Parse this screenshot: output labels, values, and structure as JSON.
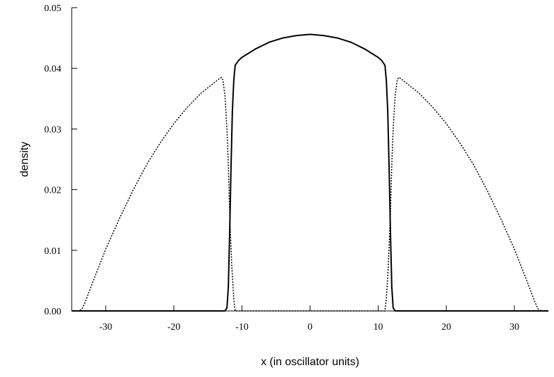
{
  "chart_data": {
    "type": "line",
    "title": "",
    "xlabel": "x (in oscillator units)",
    "ylabel": "density",
    "xlim": [
      -35,
      35
    ],
    "ylim": [
      0,
      0.05
    ],
    "x_ticks": [
      -30,
      -20,
      -10,
      0,
      10,
      20,
      30
    ],
    "x_tick_labels": [
      "-30",
      "-20",
      "-10",
      "0",
      "10",
      "20",
      "30"
    ],
    "y_ticks": [
      0,
      0.01,
      0.02,
      0.03,
      0.04,
      0.05
    ],
    "y_tick_labels": [
      "0.00",
      "0.01",
      "0.02",
      "0.03",
      "0.04",
      "0.05"
    ],
    "grid": false,
    "legend": "none",
    "series": [
      {
        "style": "solid",
        "color": "#000000",
        "x": [
          -35,
          -14,
          -12.5,
          -12.2,
          -12.0,
          -11.8,
          -11.6,
          -11.4,
          -11.2,
          -11.0,
          -10.5,
          -10,
          -8,
          -6,
          -4,
          -2,
          0,
          2,
          4,
          6,
          8,
          10,
          10.5,
          11.0,
          11.2,
          11.4,
          11.6,
          11.8,
          12.0,
          12.2,
          12.5,
          14,
          35
        ],
        "y": [
          0,
          0,
          0,
          0.0005,
          0.004,
          0.013,
          0.024,
          0.033,
          0.038,
          0.0405,
          0.0413,
          0.0418,
          0.0432,
          0.0443,
          0.045,
          0.0454,
          0.0456,
          0.0454,
          0.045,
          0.0443,
          0.0432,
          0.0418,
          0.0413,
          0.0405,
          0.038,
          0.033,
          0.024,
          0.013,
          0.004,
          0.0005,
          0,
          0,
          0
        ]
      },
      {
        "style": "dotted",
        "color": "#000000",
        "x": [
          -35,
          -34,
          -33.5,
          -33,
          -32,
          -30,
          -28,
          -26,
          -24,
          -22,
          -20,
          -18,
          -16,
          -14,
          -13.2,
          -13,
          -12.8,
          -12.5,
          -12.2,
          -12.0,
          -11.8,
          -11.5,
          -11.2,
          -11.0,
          -10,
          0,
          10,
          11.0,
          11.2,
          11.5,
          11.8,
          12.0,
          12.2,
          12.5,
          12.8,
          13,
          13.2,
          14,
          16,
          18,
          20,
          22,
          24,
          26,
          28,
          30,
          32,
          33,
          33.5,
          34,
          35
        ],
        "y": [
          0,
          0,
          0.0003,
          0.0015,
          0.0045,
          0.0102,
          0.0152,
          0.0199,
          0.0241,
          0.0277,
          0.0309,
          0.0336,
          0.0359,
          0.0377,
          0.0384,
          0.0385,
          0.0381,
          0.0355,
          0.03,
          0.024,
          0.016,
          0.0075,
          0.002,
          0,
          0,
          0,
          0,
          0,
          0.002,
          0.0075,
          0.016,
          0.024,
          0.03,
          0.0355,
          0.0381,
          0.0385,
          0.0384,
          0.0377,
          0.0359,
          0.0336,
          0.0309,
          0.0277,
          0.0241,
          0.0199,
          0.0152,
          0.0102,
          0.0045,
          0.0015,
          0.0003,
          0,
          0
        ]
      }
    ]
  }
}
